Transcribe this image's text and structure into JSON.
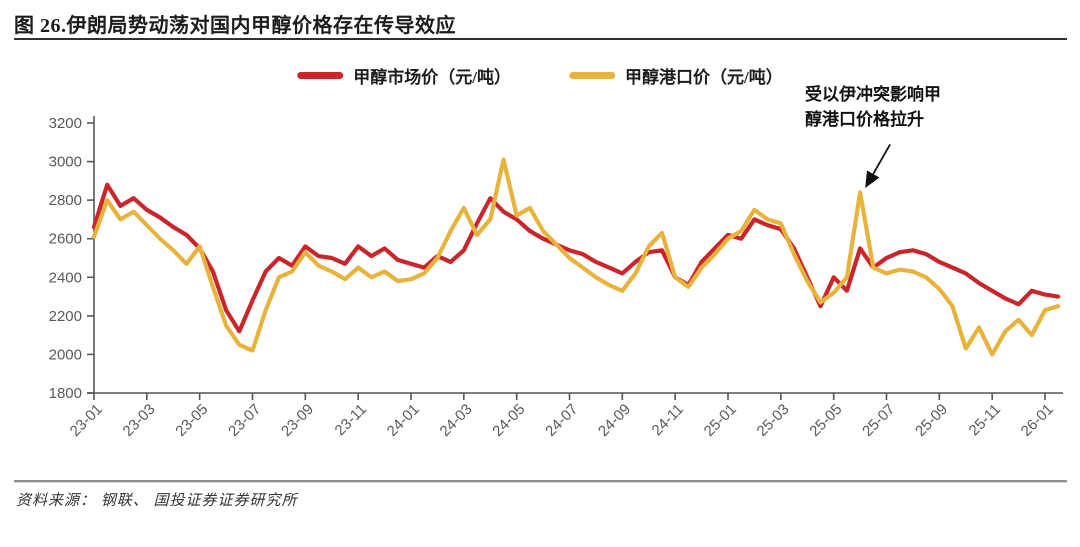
{
  "figure_title": "图 26.伊朗局势动荡对国内甲醇价格存在传导效应",
  "source_note": "资料来源：  钢联、 国投证券证券研究所",
  "annotation": {
    "line1": "受以伊冲突影响甲",
    "line2": "醇港口价格拉升"
  },
  "colors": {
    "market_price_line": "#C9252B",
    "port_price_line": "#E8B33C",
    "axis_text": "#595959",
    "title_text": "#1c1c1c"
  },
  "chart_data": {
    "type": "line",
    "title": "",
    "xlabel": "",
    "ylabel": "",
    "ylim": [
      1800,
      3200
    ],
    "y_ticks": [
      1800,
      2000,
      2200,
      2400,
      2600,
      2800,
      3000,
      3200
    ],
    "x_tick_labels": [
      "23-01",
      "23-03",
      "23-05",
      "23-07",
      "23-09",
      "23-11",
      "24-01",
      "24-03",
      "24-05",
      "24-07",
      "24-09",
      "24-11",
      "25-01",
      "25-03",
      "25-05",
      "25-07",
      "25-09",
      "25-11",
      "26-01"
    ],
    "x_resolution": "semi-monthly (two estimated points per month, 2023-01 through 2026-01)",
    "grid": false,
    "legend_position": "top-center",
    "series": [
      {
        "name": "甲醇市场价（元/吨）",
        "color": "#C9252B",
        "values": [
          2660,
          2880,
          2770,
          2810,
          2750,
          2710,
          2660,
          2620,
          2550,
          2430,
          2230,
          2120,
          2280,
          2430,
          2500,
          2460,
          2560,
          2510,
          2500,
          2470,
          2560,
          2510,
          2550,
          2490,
          2470,
          2450,
          2510,
          2480,
          2540,
          2680,
          2810,
          2740,
          2700,
          2640,
          2600,
          2570,
          2540,
          2520,
          2480,
          2450,
          2420,
          2480,
          2530,
          2540,
          2400,
          2360,
          2480,
          2550,
          2620,
          2600,
          2700,
          2670,
          2650,
          2550,
          2400,
          2250,
          2400,
          2330,
          2550,
          2450,
          2500,
          2530,
          2540,
          2520,
          2480,
          2450,
          2420,
          2370,
          2330,
          2290,
          2260,
          2330,
          2310,
          2300
        ]
      },
      {
        "name": "甲醇港口价（元/吨）",
        "color": "#E8B33C",
        "values": [
          2610,
          2800,
          2700,
          2740,
          2670,
          2600,
          2540,
          2470,
          2560,
          2350,
          2150,
          2050,
          2020,
          2230,
          2400,
          2430,
          2530,
          2460,
          2430,
          2390,
          2450,
          2400,
          2430,
          2380,
          2390,
          2420,
          2500,
          2640,
          2760,
          2620,
          2700,
          3010,
          2720,
          2760,
          2640,
          2570,
          2500,
          2450,
          2400,
          2360,
          2330,
          2420,
          2560,
          2630,
          2400,
          2350,
          2450,
          2520,
          2600,
          2640,
          2750,
          2700,
          2680,
          2520,
          2380,
          2270,
          2320,
          2400,
          2840,
          2450,
          2420,
          2440,
          2430,
          2400,
          2340,
          2250,
          2030,
          2140,
          2000,
          2120,
          2180,
          2100,
          2230,
          2250
        ]
      }
    ],
    "annotation": {
      "text": "受以伊冲突影响甲醇港口价格拉升",
      "points_to": {
        "series": "甲醇港口价（元/吨）",
        "x_label": "25-06",
        "value": 2840
      }
    }
  }
}
